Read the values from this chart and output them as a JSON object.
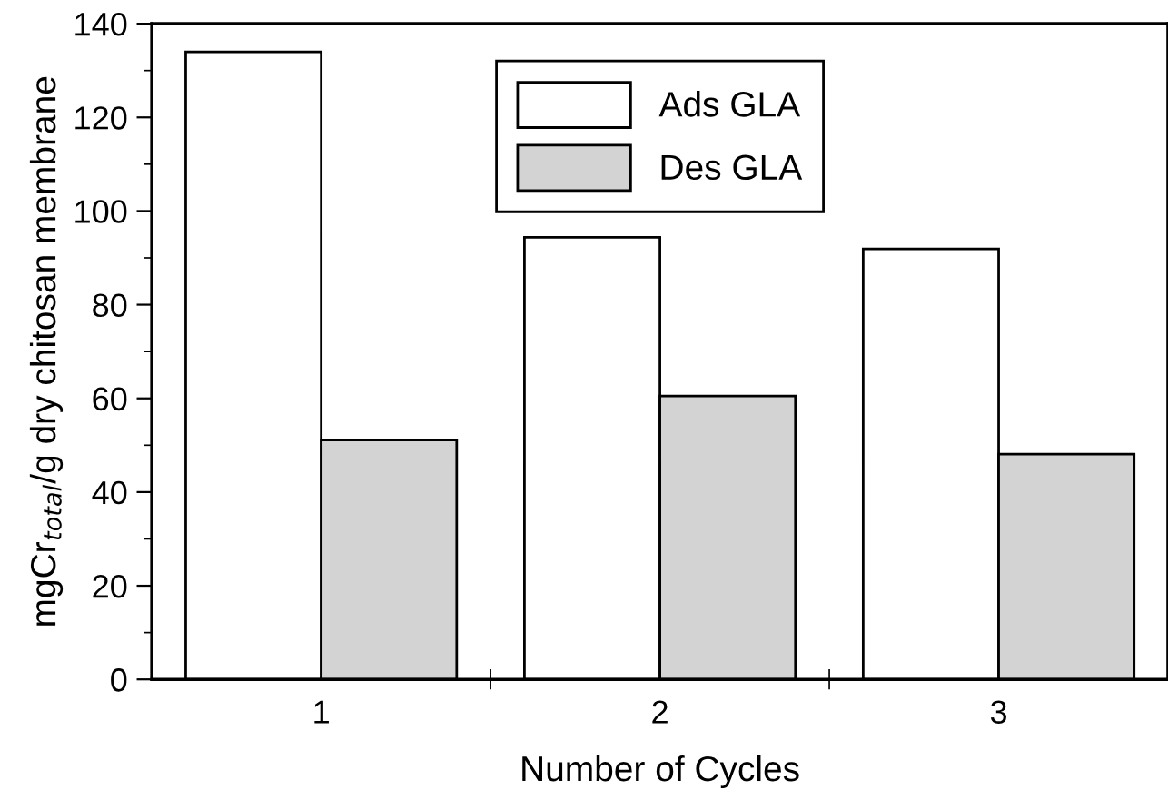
{
  "chart_data": {
    "type": "bar",
    "xlabel": "Number of Cycles",
    "ylabel": "mgCr$_{total}$/g dry chitosan membrane",
    "categories": [
      "1",
      "2",
      "3"
    ],
    "series": [
      {
        "name": "Ads GLA",
        "color": "#ffffff",
        "values": [
          134,
          94.4,
          91.9
        ]
      },
      {
        "name": "Des GLA",
        "color": "#d3d3d3",
        "values": [
          51.1,
          60.5,
          48.1
        ]
      }
    ],
    "ylim": [
      0,
      140
    ],
    "yticks": [
      0,
      20,
      40,
      60,
      80,
      100,
      120,
      140
    ],
    "grid": false,
    "legend": "top"
  }
}
